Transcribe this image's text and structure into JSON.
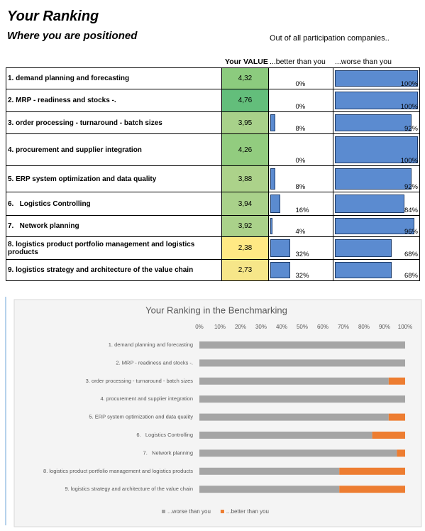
{
  "header": {
    "title": "Your Ranking",
    "subtitle": "Where you are positioned",
    "note": "Out of all participation companies.."
  },
  "table": {
    "columns": [
      "Your VALUE",
      "...better than you",
      "...worse than you"
    ],
    "rows": [
      {
        "label": "1. demand planning and forecasting",
        "value": "4,32",
        "color": "#8ccb7e",
        "better": {
          "value": 0,
          "label": "0%"
        },
        "worse": {
          "value": 100,
          "label": "100%"
        }
      },
      {
        "label": "2. MRP - readiness and stocks -.",
        "value": "4,76",
        "color": "#63be7b",
        "better": {
          "value": 0,
          "label": "0%"
        },
        "worse": {
          "value": 100,
          "label": "100%"
        }
      },
      {
        "label": "3. order processing - turnaround - batch sizes",
        "value": "3,95",
        "color": "#a8d18a",
        "better": {
          "value": 8,
          "label": "8%"
        },
        "worse": {
          "value": 92,
          "label": "92%"
        }
      },
      {
        "label": "4. procurement and supplier integration",
        "value": "4,26",
        "color": "#92cc7f",
        "better": {
          "value": 0,
          "label": "0%"
        },
        "worse": {
          "value": 100,
          "label": "100%"
        }
      },
      {
        "label": "5. ERP system optimization and data quality",
        "value": "3,88",
        "color": "#acd28a",
        "better": {
          "value": 8,
          "label": "8%"
        },
        "worse": {
          "value": 92,
          "label": "92%"
        }
      },
      {
        "label": "6.   Logistics Controlling",
        "value": "3,94",
        "color": "#a9d18a",
        "better": {
          "value": 16,
          "label": "16%"
        },
        "worse": {
          "value": 84,
          "label": "84%"
        }
      },
      {
        "label": "7.   Network planning",
        "value": "3,92",
        "color": "#aad18a",
        "better": {
          "value": 4,
          "label": "4%"
        },
        "worse": {
          "value": 96,
          "label": "96%"
        }
      },
      {
        "label": "8. logistics product portfolio management and logistics products",
        "value": "2,38",
        "color": "#ffe984",
        "better": {
          "value": 32,
          "label": "32%"
        },
        "worse": {
          "value": 68,
          "label": "68%"
        }
      },
      {
        "label": "9. logistics strategy and architecture of the value chain",
        "value": "2,73",
        "color": "#f6e689",
        "better": {
          "value": 32,
          "label": "32%"
        },
        "worse": {
          "value": 68,
          "label": "68%"
        }
      }
    ]
  },
  "chart_data": {
    "type": "bar",
    "orientation": "horizontal",
    "stacked": true,
    "title": "Your Ranking in the Benchmarking",
    "categories": [
      "1. demand planning and forecasting",
      "2. MRP - readiness and stocks -.",
      "3. order processing - turnaround - batch sizes",
      "4. procurement and supplier integration",
      "5. ERP system optimization and data quality",
      "6.   Logistics Controlling",
      "7.   Network planning",
      "8. logistics product portfolio management and logistics products",
      "9. logistics strategy and architecture of the value chain"
    ],
    "series": [
      {
        "name": "...worse than you",
        "color": "#a5a5a5",
        "values": [
          100,
          100,
          92,
          100,
          92,
          84,
          96,
          68,
          68
        ]
      },
      {
        "name": "...better than you",
        "color": "#ed7d31",
        "values": [
          0,
          0,
          8,
          0,
          8,
          16,
          4,
          32,
          32
        ]
      }
    ],
    "xlim": [
      0,
      100
    ],
    "xticks": [
      {
        "value": 0,
        "label": "0%"
      },
      {
        "value": 10,
        "label": "10%"
      },
      {
        "value": 20,
        "label": "20%"
      },
      {
        "value": 30,
        "label": "30%"
      },
      {
        "value": 40,
        "label": "40%"
      },
      {
        "value": 50,
        "label": "50%"
      },
      {
        "value": 60,
        "label": "60%"
      },
      {
        "value": 70,
        "label": "70%"
      },
      {
        "value": 80,
        "label": "80%"
      },
      {
        "value": 90,
        "label": "90%"
      },
      {
        "value": 100,
        "label": "100%"
      }
    ],
    "legend": "bottom"
  }
}
